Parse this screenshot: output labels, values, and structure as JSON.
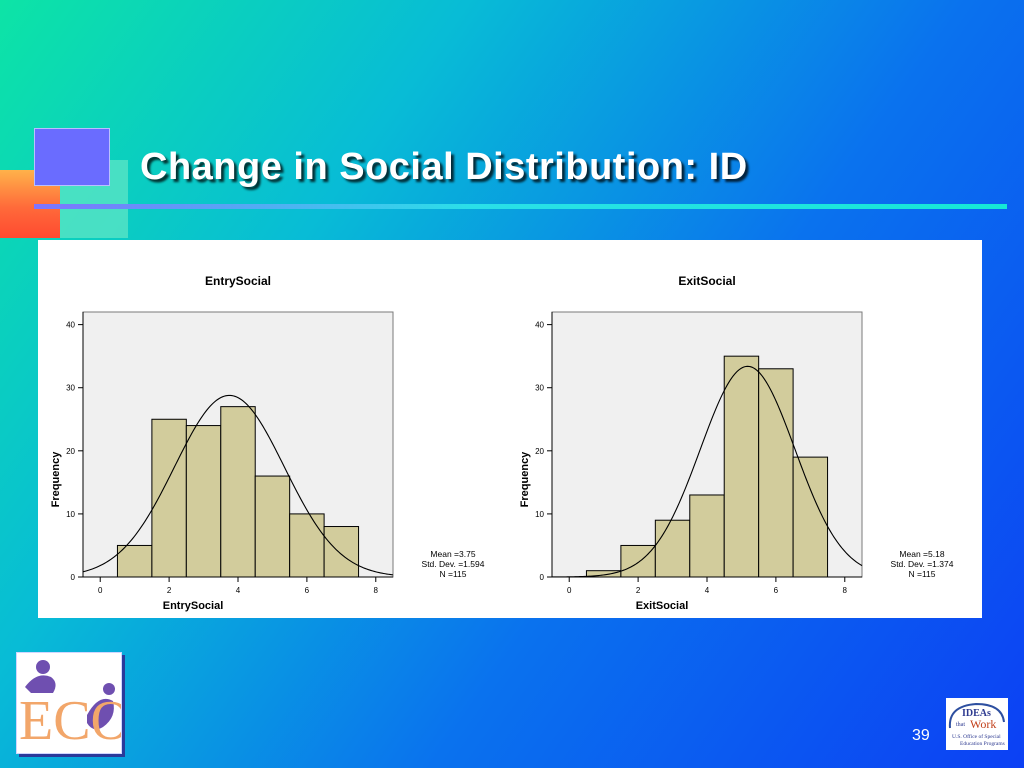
{
  "slide": {
    "title": "Change in Social Distribution: ID",
    "page_number": "39"
  },
  "colors": {
    "bar_fill": "#d2cc9c",
    "bar_stroke": "#000000",
    "plot_background": "#f0f0f0",
    "curve": "#000000"
  },
  "logos": {
    "left": {
      "icon": "eco-logo-icon",
      "text": "ECO"
    },
    "right": {
      "icon": "ideas-that-work-logo-icon",
      "line1": "IDEAs",
      "line2": "that",
      "line3": "Work",
      "caption1": "U.S. Office of Special",
      "caption2": "Education Programs"
    }
  },
  "chart_data": [
    {
      "type": "bar",
      "title": "EntrySocial",
      "xlabel": "EntrySocial",
      "ylabel": "Frequency",
      "bin_width": 1,
      "bin_starts": [
        0.5,
        1.5,
        2.5,
        3.5,
        4.5,
        5.5,
        6.5
      ],
      "values": [
        5,
        25,
        24,
        27,
        16,
        10,
        8
      ],
      "xlim": [
        -0.5,
        8.5
      ],
      "ylim": [
        0,
        42
      ],
      "xticks": [
        0,
        2,
        4,
        6,
        8
      ],
      "yticks": [
        0,
        10,
        20,
        30,
        40
      ],
      "normal_curve": {
        "mean": 3.75,
        "sd": 1.594,
        "n": 115
      },
      "stats": [
        "Mean =3.75",
        "Std. Dev. =1.594",
        "N =115"
      ]
    },
    {
      "type": "bar",
      "title": "ExitSocial",
      "xlabel": "ExitSocial",
      "ylabel": "Frequency",
      "bin_width": 1,
      "bin_starts": [
        0.5,
        1.5,
        2.5,
        3.5,
        4.5,
        5.5,
        6.5
      ],
      "values": [
        1,
        5,
        9,
        13,
        35,
        33,
        19
      ],
      "xlim": [
        -0.5,
        8.5
      ],
      "ylim": [
        0,
        42
      ],
      "xticks": [
        0,
        2,
        4,
        6,
        8
      ],
      "yticks": [
        0,
        10,
        20,
        30,
        40
      ],
      "normal_curve": {
        "mean": 5.18,
        "sd": 1.374,
        "n": 115
      },
      "stats": [
        "Mean =5.18",
        "Std. Dev. =1.374",
        "N =115"
      ]
    }
  ]
}
